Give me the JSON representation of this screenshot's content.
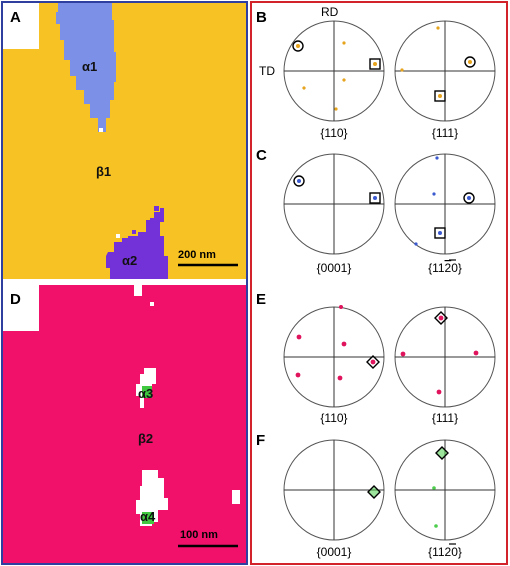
{
  "colors": {
    "beta1": "#f7c223",
    "alpha1": "#7b90e6",
    "alpha2": "#7331d8",
    "beta2": "#f2116a",
    "alpha34": "#40c940",
    "orange_pole": "#e6a31c",
    "blue_pole": "#3c5ad0",
    "red_pole": "#e0145c",
    "green_pole": "#4ccd4c",
    "frame_blue": "#2e3fa0",
    "frame_red": "#d2232a"
  },
  "panels": {
    "A": {
      "letter": "A",
      "labels": {
        "alpha1": "α1",
        "beta1": "β1",
        "alpha2": "α2"
      },
      "scalebar": "200 nm"
    },
    "D": {
      "letter": "D",
      "labels": {
        "alpha3": "α3",
        "beta2": "β2",
        "alpha4": "α4"
      },
      "scalebar": "100 nm"
    },
    "B": {
      "letter": "B",
      "rd": "RD",
      "td": "TD",
      "family_left": "{110}",
      "family_right": "{111}"
    },
    "C": {
      "letter": "C",
      "family_left": "{0001}",
      "family_right_pre": "{11",
      "family_right_bar": "2",
      "family_right_post": "0}"
    },
    "E": {
      "letter": "E",
      "family_left": "{110}",
      "family_right": "{111}"
    },
    "F": {
      "letter": "F",
      "family_left": "{0001}",
      "family_right_pre": "{11",
      "family_right_bar": "2",
      "family_right_post": "0}"
    }
  }
}
